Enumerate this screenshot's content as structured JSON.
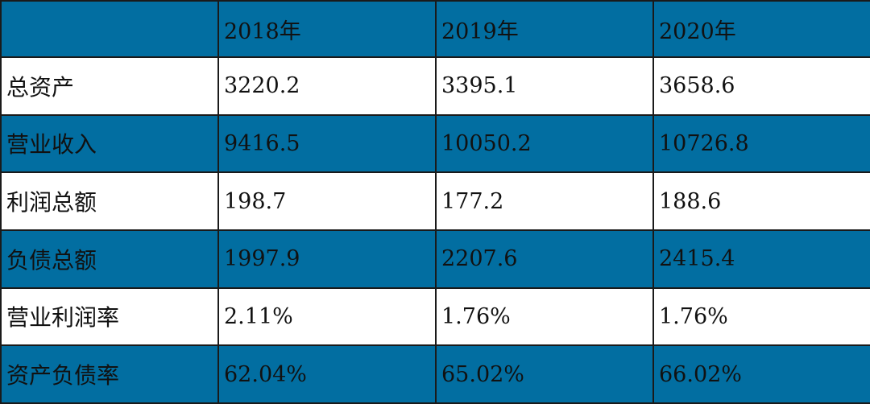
{
  "chart_data": {
    "type": "table",
    "columns": [
      "",
      "2018年",
      "2019年",
      "2020年"
    ],
    "rows": [
      {
        "label": "总资产",
        "values": [
          "3220.2",
          "3395.1",
          "3658.6"
        ]
      },
      {
        "label": "营业收入",
        "values": [
          "9416.5",
          "10050.2",
          "10726.8"
        ]
      },
      {
        "label": "利润总额",
        "values": [
          "198.7",
          "177.2",
          "188.6"
        ]
      },
      {
        "label": "负债总额",
        "values": [
          "1997.9",
          "2207.6",
          "2415.4"
        ]
      },
      {
        "label": "营业利润率",
        "values": [
          "2.11%",
          "1.76%",
          "1.76%"
        ]
      },
      {
        "label": "资产负债率",
        "values": [
          "62.04%",
          "65.02%",
          "66.02%"
        ]
      }
    ]
  },
  "colors": {
    "band_blue": "#026ea1",
    "band_white": "#ffffff",
    "border": "#1a1a1a",
    "text": "#111111"
  }
}
